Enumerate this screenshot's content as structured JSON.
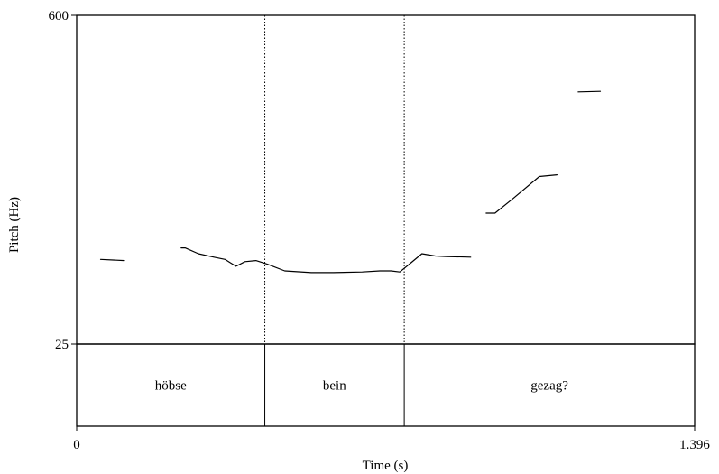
{
  "chart_data": {
    "type": "line",
    "xlabel": "Time (s)",
    "ylabel": "Pitch (Hz)",
    "xlim": [
      0,
      1.396
    ],
    "ylim": [
      25,
      600
    ],
    "x_tick_labels": [
      "0",
      "1.396"
    ],
    "y_tick_labels": [
      "25",
      "600"
    ],
    "grid": false,
    "series": [
      {
        "segments": [
          [
            [
              0.054,
              173
            ],
            [
              0.108,
              171
            ]
          ],
          [
            [
              0.236,
              193
            ],
            [
              0.245,
              193
            ],
            [
              0.275,
              183
            ],
            [
              0.31,
              177
            ],
            [
              0.335,
              173
            ],
            [
              0.36,
              161
            ],
            [
              0.38,
              169
            ],
            [
              0.405,
              171
            ],
            [
              0.43,
              165
            ],
            [
              0.47,
              153
            ],
            [
              0.53,
              150
            ],
            [
              0.58,
              150
            ],
            [
              0.645,
              151
            ],
            [
              0.685,
              153
            ],
            [
              0.71,
              153
            ],
            [
              0.73,
              151
            ],
            [
              0.755,
              167
            ],
            [
              0.78,
              183
            ],
            [
              0.81,
              179
            ],
            [
              0.835,
              178
            ],
            [
              0.89,
              177
            ]
          ],
          [
            [
              0.925,
              254
            ],
            [
              0.945,
              254
            ],
            [
              0.985,
              279
            ],
            [
              1.045,
              318
            ],
            [
              1.085,
              321
            ]
          ],
          [
            [
              1.133,
              466
            ],
            [
              1.183,
              467
            ]
          ]
        ]
      }
    ],
    "tier": {
      "boundaries": [
        0.425,
        0.74
      ],
      "intervals": [
        {
          "start": 0,
          "end": 0.425,
          "label": "höbse"
        },
        {
          "start": 0.425,
          "end": 0.74,
          "label": "bein"
        },
        {
          "start": 0.74,
          "end": 1.396,
          "label": "gezag?"
        }
      ]
    }
  }
}
